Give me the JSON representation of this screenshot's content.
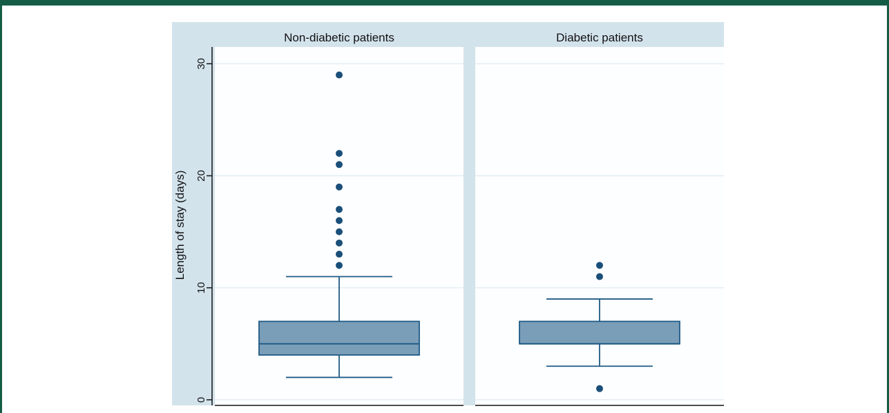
{
  "chart_data": {
    "type": "box",
    "ylabel": "Length of stay (days)",
    "ylim": [
      -0.5,
      31.5
    ],
    "yticks": [
      0,
      10,
      20,
      30
    ],
    "grid": true,
    "panels": [
      {
        "name": "Non-diabetic patients",
        "whisker_low": 2,
        "q1": 4,
        "median": 5,
        "q3": 7,
        "whisker_high": 11,
        "outliers": [
          12,
          13,
          14,
          15,
          16,
          17,
          19,
          21,
          22,
          29
        ]
      },
      {
        "name": "Diabetic patients",
        "whisker_low": 3,
        "q1": 5,
        "median": 5,
        "q3": 7,
        "whisker_high": 9,
        "outliers": [
          1,
          11,
          12
        ]
      }
    ],
    "colors": {
      "box_fill": "#7a9db8",
      "box_stroke": "#1f5a85",
      "outlier": "#1a4f7a",
      "strip": "#d3e3ec",
      "panel_bg": "#fdfeff",
      "gutter": "#d3e3ec",
      "grid": "#dde9f0"
    }
  }
}
